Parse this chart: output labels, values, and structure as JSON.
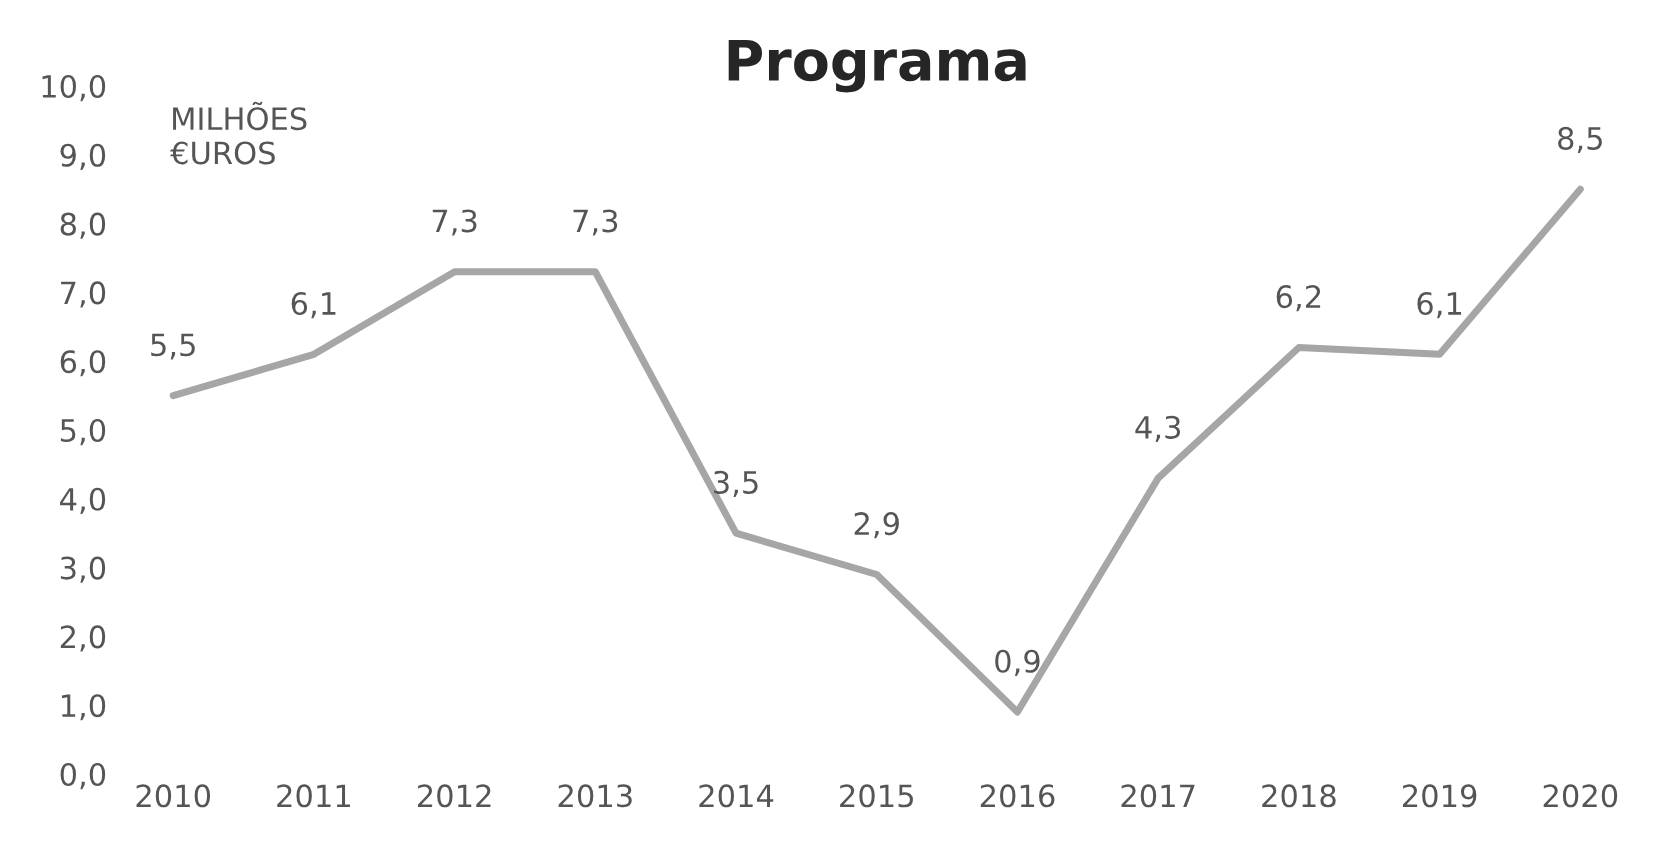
{
  "chart_data": {
    "type": "line",
    "title": "Programa",
    "annotations": [
      "MILHÕES\n€UROS"
    ],
    "categories": [
      "2010",
      "2011",
      "2012",
      "2013",
      "2014",
      "2015",
      "2016",
      "2017",
      "2018",
      "2019",
      "2020"
    ],
    "series": [
      {
        "color": "#a6a6a6",
        "values": [
          5.5,
          6.1,
          7.3,
          7.3,
          3.5,
          2.9,
          0.9,
          4.3,
          6.2,
          6.1,
          8.5
        ],
        "value_labels": [
          "5,5",
          "6,1",
          "7,3",
          "7,3",
          "3,5",
          "2,9",
          "0,9",
          "4,3",
          "6,2",
          "6,1",
          "8,5"
        ]
      }
    ],
    "ylim": [
      0,
      10
    ],
    "yticks": [
      {
        "value": 0,
        "label": "0,0"
      },
      {
        "value": 1,
        "label": "1,0"
      },
      {
        "value": 2,
        "label": "2,0"
      },
      {
        "value": 3,
        "label": "3,0"
      },
      {
        "value": 4,
        "label": "4,0"
      },
      {
        "value": 5,
        "label": "5,0"
      },
      {
        "value": 6,
        "label": "6,0"
      },
      {
        "value": 7,
        "label": "7,0"
      },
      {
        "value": 8,
        "label": "8,0"
      },
      {
        "value": 9,
        "label": "9,0"
      },
      {
        "value": 10,
        "label": "10,0"
      }
    ],
    "line_style": "solid",
    "marker": "none",
    "grid": false,
    "legend": false
  }
}
